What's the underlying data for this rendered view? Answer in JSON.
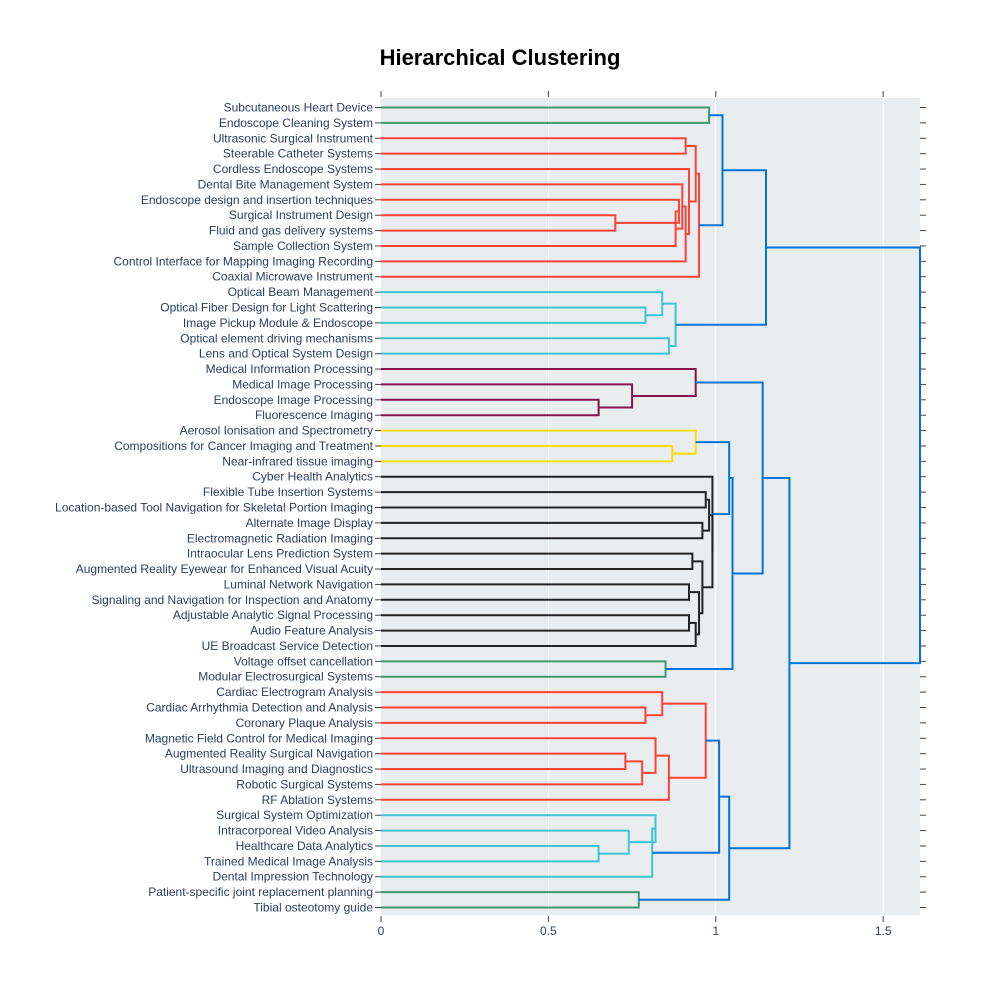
{
  "chart_data": {
    "type": "dendrogram",
    "title": "Hierarchical Clustering",
    "xlabel": "",
    "ylabel": "",
    "xlim": [
      0,
      1.61
    ],
    "xticks": [
      0,
      0.5,
      1,
      1.5
    ],
    "xtick_labels": [
      "0",
      "0.5",
      "1",
      "1.5"
    ],
    "grid": true,
    "colors": {
      "green": "#3d9970",
      "red": "#ff4136",
      "cyan": "#3dc5d1",
      "purple": "#85144b",
      "yellow": "#ffdc00",
      "black": "#222222",
      "blue": "#0074d9",
      "plot_bg": "#e9edf0"
    },
    "leaves": [
      "Subcutaneous Heart Device",
      "Endoscope Cleaning System",
      "Ultrasonic Surgical Instrument",
      "Steerable Catheter Systems",
      "Cordless Endoscope Systems",
      "Dental Bite Management System",
      "Endoscope design and insertion techniques",
      "Surgical Instrument Design",
      "Fluid and gas delivery systems",
      "Sample Collection System",
      "Control Interface for Mapping Imaging Recording",
      "Coaxial Microwave Instrument",
      "Optical Beam Management",
      "Optical Fiber Design for Light Scattering",
      "Image Pickup Module & Endoscope",
      "Optical element driving mechanisms",
      "Lens and Optical System Design",
      "Medical Information Processing",
      "Medical Image Processing",
      "Endoscope Image Processing",
      "Fluorescence Imaging",
      "Aerosol Ionisation and Spectrometry",
      "Compositions for Cancer Imaging and Treatment",
      "Near-infrared tissue imaging",
      "Cyber Health Analytics",
      "Flexible Tube Insertion Systems",
      "Location-based Tool Navigation for Skeletal Portion Imaging",
      "Alternate Image Display",
      "Electromagnetic Radiation Imaging",
      "Intraocular Lens Prediction System",
      "Augmented Reality Eyewear for Enhanced Visual Acuity",
      "Luminal Network Navigation",
      "Signaling and Navigation for Inspection and Anatomy",
      "Adjustable Analytic Signal Processing",
      "Audio Feature Analysis",
      "UE Broadcast Service Detection",
      "Voltage offset cancellation",
      "Modular Electrosurgical Systems",
      "Cardiac Electrogram Analysis",
      "Cardiac Arrhythmia Detection and Analysis",
      "Coronary Plaque Analysis",
      "Magnetic Field Control for Medical Imaging",
      "Augmented Reality Surgical Navigation",
      "Ultrasound Imaging and Diagnostics",
      "Robotic Surgical Systems",
      "RF Ablation Systems",
      "Surgical System Optimization",
      "Intracorporeal Video Analysis",
      "Healthcare Data Analytics",
      "Trained Medical Image Analysis",
      "Dental Impression Technology",
      "Patient-specific joint replacement planning",
      "Tibial osteotomy guide"
    ],
    "merges": [
      {
        "a": "L0",
        "b": "L1",
        "h": 0.98,
        "c": "green"
      },
      {
        "a": "L7",
        "b": "L8",
        "h": 0.7,
        "c": "red"
      },
      {
        "a": "L6",
        "b": "M1",
        "h": 0.89,
        "c": "red"
      },
      {
        "a": "L9",
        "b": "M2",
        "h": 0.88,
        "c": "red"
      },
      {
        "a": "L5",
        "b": "M3",
        "h": 0.9,
        "c": "red"
      },
      {
        "a": "L10",
        "b": "M4",
        "h": 0.91,
        "c": "red"
      },
      {
        "a": "L4",
        "b": "M5",
        "h": 0.92,
        "c": "red"
      },
      {
        "a": "L2",
        "b": "L3",
        "h": 0.91,
        "c": "red"
      },
      {
        "a": "M7",
        "b": "M6",
        "h": 0.94,
        "c": "red"
      },
      {
        "a": "M8",
        "b": "L11",
        "h": 0.95,
        "c": "red"
      },
      {
        "a": "M0",
        "b": "M9",
        "h": 1.02,
        "c": "blue"
      },
      {
        "a": "L13",
        "b": "L14",
        "h": 0.79,
        "c": "cyan"
      },
      {
        "a": "L12",
        "b": "M11",
        "h": 0.84,
        "c": "cyan"
      },
      {
        "a": "L15",
        "b": "L16",
        "h": 0.86,
        "c": "cyan"
      },
      {
        "a": "M12",
        "b": "M13",
        "h": 0.88,
        "c": "cyan"
      },
      {
        "a": "M10",
        "b": "M14",
        "h": 1.15,
        "c": "blue"
      },
      {
        "a": "L19",
        "b": "L20",
        "h": 0.65,
        "c": "purple"
      },
      {
        "a": "L18",
        "b": "M16",
        "h": 0.75,
        "c": "purple"
      },
      {
        "a": "L17",
        "b": "M17",
        "h": 0.94,
        "c": "purple"
      },
      {
        "a": "L22",
        "b": "L23",
        "h": 0.87,
        "c": "yellow"
      },
      {
        "a": "L21",
        "b": "M19",
        "h": 0.94,
        "c": "yellow"
      },
      {
        "a": "L25",
        "b": "L26",
        "h": 0.97,
        "c": "black"
      },
      {
        "a": "L27",
        "b": "L28",
        "h": 0.96,
        "c": "black"
      },
      {
        "a": "M21",
        "b": "M22",
        "h": 0.98,
        "c": "black"
      },
      {
        "a": "L29",
        "b": "L30",
        "h": 0.93,
        "c": "black"
      },
      {
        "a": "L31",
        "b": "L32",
        "h": 0.92,
        "c": "black"
      },
      {
        "a": "L33",
        "b": "L34",
        "h": 0.92,
        "c": "black"
      },
      {
        "a": "M26",
        "b": "L35",
        "h": 0.94,
        "c": "black"
      },
      {
        "a": "M25",
        "b": "M27",
        "h": 0.95,
        "c": "black"
      },
      {
        "a": "M24",
        "b": "M28",
        "h": 0.96,
        "c": "black"
      },
      {
        "a": "M23",
        "b": "M29",
        "h": 0.99,
        "c": "black"
      },
      {
        "a": "L24",
        "b": "M30",
        "h": 0.99,
        "c": "black"
      },
      {
        "a": "M20",
        "b": "M31",
        "h": 1.04,
        "c": "blue"
      },
      {
        "a": "L36",
        "b": "L37",
        "h": 0.85,
        "c": "green"
      },
      {
        "a": "M32",
        "b": "M33",
        "h": 1.05,
        "c": "blue"
      },
      {
        "a": "M18",
        "b": "M34",
        "h": 1.14,
        "c": "blue"
      },
      {
        "a": "L39",
        "b": "L40",
        "h": 0.79,
        "c": "red"
      },
      {
        "a": "L38",
        "b": "M36",
        "h": 0.84,
        "c": "red"
      },
      {
        "a": "L42",
        "b": "L43",
        "h": 0.73,
        "c": "red"
      },
      {
        "a": "M38",
        "b": "L44",
        "h": 0.78,
        "c": "red"
      },
      {
        "a": "L41",
        "b": "M39",
        "h": 0.82,
        "c": "red"
      },
      {
        "a": "M40",
        "b": "L45",
        "h": 0.86,
        "c": "red"
      },
      {
        "a": "M37",
        "b": "M41",
        "h": 0.97,
        "c": "red"
      },
      {
        "a": "L48",
        "b": "L49",
        "h": 0.65,
        "c": "cyan"
      },
      {
        "a": "L47",
        "b": "M43",
        "h": 0.74,
        "c": "cyan"
      },
      {
        "a": "L46",
        "b": "M44",
        "h": 0.82,
        "c": "cyan"
      },
      {
        "a": "M45",
        "b": "L50",
        "h": 0.81,
        "c": "cyan"
      },
      {
        "a": "M42",
        "b": "M46",
        "h": 1.01,
        "c": "blue"
      },
      {
        "a": "L51",
        "b": "L52",
        "h": 0.77,
        "c": "green"
      },
      {
        "a": "M47",
        "b": "M48",
        "h": 1.04,
        "c": "blue"
      },
      {
        "a": "M35",
        "b": "M49",
        "h": 1.22,
        "c": "blue"
      },
      {
        "a": "M15",
        "b": "M50",
        "h": 1.61,
        "c": "blue"
      }
    ]
  }
}
